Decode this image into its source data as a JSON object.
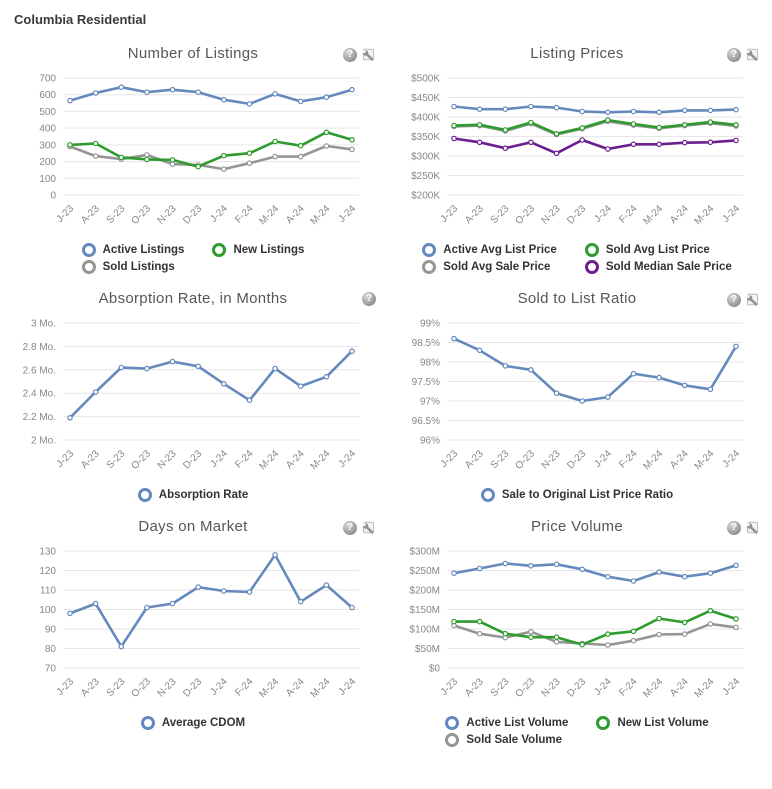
{
  "page": {
    "title": "Columbia Residential"
  },
  "icons": {
    "help_glyph": "?"
  },
  "colors": {
    "blue": "#6589bd",
    "green": "#2d9b2d",
    "gray": "#959595",
    "purple": "#6b1f8f"
  },
  "chart_data": [
    {
      "type": "line",
      "title": "Number of Listings",
      "categories": [
        "J-23",
        "A-23",
        "S-23",
        "O-23",
        "N-23",
        "D-23",
        "J-24",
        "F-24",
        "M-24",
        "A-24",
        "M-24",
        "J-24"
      ],
      "ylim": [
        0,
        700
      ],
      "yticks": [
        "0",
        "100",
        "200",
        "300",
        "400",
        "500",
        "600",
        "700"
      ],
      "grid": "horizontal",
      "legend_position": "bottom",
      "draw_order": [
        0,
        2,
        1
      ],
      "series": [
        {
          "name": "Active Listings",
          "color": "blue",
          "values": [
            565,
            610,
            645,
            615,
            630,
            615,
            570,
            545,
            605,
            560,
            585,
            630
          ]
        },
        {
          "name": "New Listings",
          "color": "green",
          "values": [
            300,
            308,
            225,
            213,
            210,
            170,
            235,
            250,
            320,
            295,
            375,
            330
          ]
        },
        {
          "name": "Sold Listings",
          "color": "gray",
          "values": [
            290,
            233,
            215,
            240,
            185,
            180,
            155,
            190,
            230,
            230,
            293,
            273
          ]
        }
      ]
    },
    {
      "type": "line",
      "title": "Listing Prices",
      "categories": [
        "J-23",
        "A-23",
        "S-23",
        "O-23",
        "N-23",
        "D-23",
        "J-24",
        "F-24",
        "M-24",
        "A-24",
        "M-24",
        "J-24"
      ],
      "ylim": [
        200,
        500
      ],
      "yticks": [
        "$200K",
        "$250K",
        "$300K",
        "$350K",
        "$400K",
        "$450K",
        "$500K"
      ],
      "grid": "horizontal",
      "legend_position": "bottom",
      "draw_order": [
        0,
        2,
        1,
        3
      ],
      "series": [
        {
          "name": "Active Avg List Price",
          "color": "blue",
          "values": [
            427,
            420,
            420,
            427,
            424,
            414,
            412,
            414,
            412,
            417,
            417,
            419
          ]
        },
        {
          "name": "Sold Avg List Price",
          "color": "green",
          "values": [
            378,
            380,
            367,
            386,
            357,
            372,
            392,
            382,
            373,
            380,
            387,
            380
          ]
        },
        {
          "name": "Sold Avg Sale Price",
          "color": "gray",
          "values": [
            376,
            378,
            364,
            383,
            355,
            370,
            389,
            379,
            371,
            378,
            384,
            377
          ]
        },
        {
          "name": "Sold Median Sale Price",
          "color": "purple",
          "values": [
            345,
            335,
            320,
            335,
            307,
            341,
            318,
            330,
            330,
            334,
            335,
            340
          ]
        }
      ]
    },
    {
      "type": "line",
      "title": "Absorption Rate, in Months",
      "categories": [
        "J-23",
        "A-23",
        "S-23",
        "O-23",
        "N-23",
        "D-23",
        "J-24",
        "F-24",
        "M-24",
        "A-24",
        "M-24",
        "J-24"
      ],
      "ylim": [
        2,
        3
      ],
      "yticks": [
        "2 Mo.",
        "2.2 Mo.",
        "2.4 Mo.",
        "2.6 Mo.",
        "2.8 Mo.",
        "3 Mo."
      ],
      "grid": "horizontal",
      "legend_position": "bottom",
      "draw_order": [
        0
      ],
      "series": [
        {
          "name": "Absorption Rate",
          "color": "blue",
          "values": [
            2.19,
            2.41,
            2.62,
            2.61,
            2.67,
            2.63,
            2.48,
            2.34,
            2.61,
            2.46,
            2.54,
            2.76
          ]
        }
      ]
    },
    {
      "type": "line",
      "title": "Sold to List Ratio",
      "categories": [
        "J-23",
        "A-23",
        "S-23",
        "O-23",
        "N-23",
        "D-23",
        "J-24",
        "F-24",
        "M-24",
        "A-24",
        "M-24",
        "J-24"
      ],
      "ylim": [
        96,
        99
      ],
      "yticks": [
        "96%",
        "96.5%",
        "97%",
        "97.5%",
        "98%",
        "98.5%",
        "99%"
      ],
      "grid": "horizontal",
      "legend_position": "bottom",
      "draw_order": [
        0
      ],
      "series": [
        {
          "name": "Sale to Original List Price Ratio",
          "color": "blue",
          "values": [
            98.6,
            98.3,
            97.9,
            97.8,
            97.2,
            97.0,
            97.1,
            97.7,
            97.6,
            97.4,
            97.3,
            98.4
          ]
        }
      ]
    },
    {
      "type": "line",
      "title": "Days on Market",
      "categories": [
        "J-23",
        "A-23",
        "S-23",
        "O-23",
        "N-23",
        "D-23",
        "J-24",
        "F-24",
        "M-24",
        "A-24",
        "M-24",
        "J-24"
      ],
      "ylim": [
        70,
        130
      ],
      "yticks": [
        "70",
        "80",
        "90",
        "100",
        "110",
        "120",
        "130"
      ],
      "grid": "horizontal",
      "legend_position": "bottom",
      "draw_order": [
        0
      ],
      "series": [
        {
          "name": "Average CDOM",
          "color": "blue",
          "values": [
            98,
            103,
            81,
            101,
            103,
            111.5,
            109.5,
            109,
            128,
            104,
            112.5,
            101
          ]
        }
      ]
    },
    {
      "type": "line",
      "title": "Price Volume",
      "categories": [
        "J-23",
        "A-23",
        "S-23",
        "O-23",
        "N-23",
        "D-23",
        "J-24",
        "F-24",
        "M-24",
        "A-24",
        "M-24",
        "J-24"
      ],
      "ylim": [
        0,
        300
      ],
      "yticks": [
        "$0",
        "$50M",
        "$100M",
        "$150M",
        "$200M",
        "$250M",
        "$300M"
      ],
      "grid": "horizontal",
      "legend_position": "bottom",
      "draw_order": [
        0,
        2,
        1
      ],
      "series": [
        {
          "name": "Active List Volume",
          "color": "blue",
          "values": [
            243,
            255,
            268,
            262,
            266,
            253,
            234,
            223,
            246,
            234,
            243,
            263
          ]
        },
        {
          "name": "New List Volume",
          "color": "green",
          "values": [
            119,
            119,
            88,
            79,
            79,
            60,
            87,
            94,
            127,
            117,
            147,
            126
          ]
        },
        {
          "name": "Sold Sale Volume",
          "color": "gray",
          "values": [
            109,
            88,
            78,
            93,
            67,
            63,
            59,
            70,
            86,
            87,
            113,
            104
          ]
        }
      ]
    }
  ]
}
